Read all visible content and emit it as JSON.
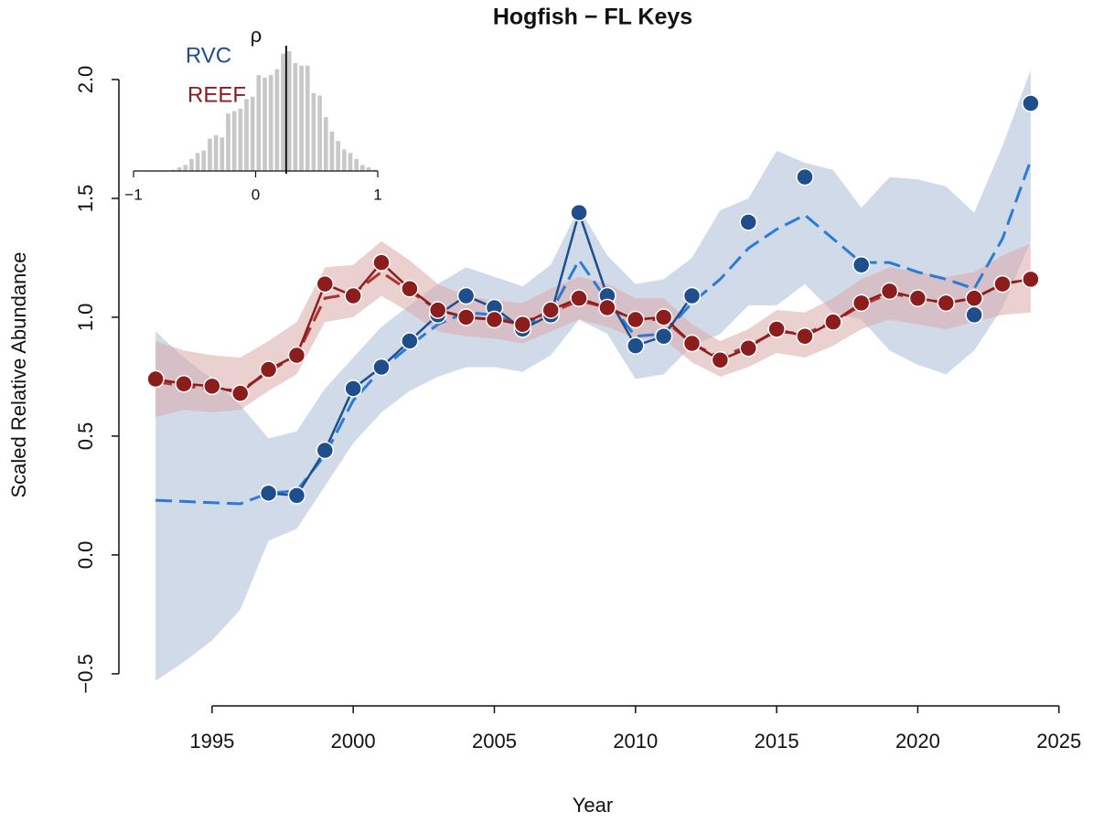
{
  "chart_data": [
    {
      "type": "line",
      "title": "Hogfish − FL Keys",
      "x_label": "Year",
      "y_label": "Scaled Relative Abundance",
      "x": [
        1993,
        1994,
        1995,
        1996,
        1997,
        1998,
        1999,
        2000,
        2001,
        2002,
        2003,
        2004,
        2005,
        2006,
        2007,
        2008,
        2009,
        2010,
        2011,
        2012,
        2013,
        2014,
        2015,
        2016,
        2017,
        2018,
        2019,
        2020,
        2021,
        2022,
        2023,
        2024
      ],
      "xlim": [
        1991.7,
        2025.3
      ],
      "xticks": [
        1995,
        2000,
        2005,
        2010,
        2015,
        2020,
        2025
      ],
      "ylim": [
        -0.635,
        2.2
      ],
      "yticks": [
        {
          "value": -0.5,
          "label": "−0.5"
        },
        {
          "value": 0,
          "label": "0.0"
        },
        0.5,
        {
          "value": 1,
          "label": "1.0"
        },
        1.5,
        {
          "value": 2,
          "label": "2.0"
        }
      ],
      "series": [
        {
          "name": "RVC",
          "color": "#1f4e8c",
          "model_color": "#2b7bd6",
          "band_color": "#a9bcd6",
          "values": [
            null,
            null,
            null,
            null,
            0.26,
            0.25,
            0.44,
            0.7,
            0.79,
            0.9,
            1.01,
            1.09,
            1.04,
            0.95,
            1.01,
            1.44,
            1.09,
            0.88,
            0.92,
            1.09,
            null,
            1.4,
            null,
            1.59,
            null,
            1.22,
            null,
            null,
            null,
            1.01,
            null,
            1.9
          ],
          "model": [
            0.23,
            0.225,
            0.22,
            0.215,
            0.26,
            0.27,
            0.42,
            0.65,
            0.78,
            0.88,
            0.97,
            1.02,
            1.01,
            0.96,
            1.02,
            1.24,
            1.07,
            0.92,
            0.93,
            1.06,
            1.16,
            1.29,
            1.37,
            1.43,
            1.33,
            1.23,
            1.23,
            1.19,
            1.16,
            1.12,
            1.33,
            1.66
          ],
          "lower": [
            -0.53,
            -0.45,
            -0.36,
            -0.23,
            0.06,
            0.11,
            0.29,
            0.47,
            0.6,
            0.69,
            0.75,
            0.79,
            0.79,
            0.77,
            0.84,
            0.99,
            0.93,
            0.74,
            0.76,
            0.88,
            0.93,
            1.05,
            1.05,
            1.14,
            1.02,
            0.99,
            0.86,
            0.8,
            0.76,
            0.86,
            1.04,
            1.32
          ],
          "upper": [
            0.94,
            0.83,
            0.74,
            0.63,
            0.49,
            0.52,
            0.7,
            0.83,
            0.96,
            1.05,
            1.14,
            1.21,
            1.17,
            1.13,
            1.22,
            1.46,
            1.26,
            1.14,
            1.16,
            1.25,
            1.45,
            1.5,
            1.7,
            1.65,
            1.62,
            1.46,
            1.59,
            1.58,
            1.55,
            1.44,
            1.72,
            2.04
          ]
        },
        {
          "name": "REEF",
          "color": "#8b1d1d",
          "model_color": "#b0302f",
          "band_color": "#dba9a9",
          "values": [
            0.74,
            0.72,
            0.71,
            0.68,
            0.78,
            0.84,
            1.14,
            1.09,
            1.23,
            1.12,
            1.03,
            1.0,
            0.99,
            0.97,
            1.03,
            1.08,
            1.04,
            0.99,
            1.0,
            0.89,
            0.82,
            0.87,
            0.95,
            0.92,
            0.98,
            1.06,
            1.11,
            1.08,
            1.06,
            1.08,
            1.14,
            1.16
          ],
          "model": [
            0.73,
            0.71,
            0.7,
            0.69,
            0.77,
            0.84,
            1.08,
            1.1,
            1.19,
            1.11,
            1.03,
            1.0,
            0.99,
            0.98,
            1.02,
            1.07,
            1.04,
            0.99,
            0.99,
            0.89,
            0.83,
            0.88,
            0.94,
            0.93,
            0.98,
            1.05,
            1.1,
            1.08,
            1.06,
            1.08,
            1.14,
            1.16
          ],
          "lower": [
            0.58,
            0.61,
            0.6,
            0.61,
            0.69,
            0.76,
            0.98,
            1.0,
            1.09,
            1.02,
            0.94,
            0.92,
            0.91,
            0.89,
            0.94,
            0.99,
            0.96,
            0.91,
            0.91,
            0.81,
            0.75,
            0.79,
            0.85,
            0.83,
            0.88,
            0.95,
            0.99,
            0.97,
            0.95,
            0.98,
            1.01,
            1.02
          ],
          "upper": [
            0.9,
            0.86,
            0.84,
            0.83,
            0.9,
            0.98,
            1.21,
            1.22,
            1.32,
            1.24,
            1.14,
            1.09,
            1.07,
            1.06,
            1.12,
            1.17,
            1.14,
            1.08,
            1.08,
            0.97,
            0.9,
            0.95,
            1.03,
            1.02,
            1.08,
            1.16,
            1.21,
            1.19,
            1.17,
            1.19,
            1.26,
            1.31
          ]
        }
      ]
    },
    {
      "type": "histogram",
      "title": "ρ",
      "color": "#c8c8c8",
      "marker": 0.25,
      "bins": [
        -0.75,
        -0.7,
        -0.65,
        -0.6,
        -0.55,
        -0.5,
        -0.45,
        -0.4,
        -0.35,
        -0.3,
        -0.25,
        -0.2,
        -0.15,
        -0.1,
        -0.05,
        0,
        0.05,
        0.1,
        0.15,
        0.2,
        0.25,
        0.3,
        0.35,
        0.4,
        0.45,
        0.5,
        0.55,
        0.6,
        0.65,
        0.7,
        0.75,
        0.8,
        0.85,
        0.9,
        0.95,
        1.0
      ],
      "counts": [
        0.5,
        1,
        3,
        5,
        10,
        15,
        17,
        27,
        30,
        28,
        48,
        50,
        52,
        60,
        62,
        80,
        78,
        80,
        85,
        98,
        100,
        90,
        88,
        88,
        65,
        63,
        45,
        33,
        25,
        18,
        15,
        10,
        5,
        3,
        1
      ],
      "xlim": [
        -1,
        1
      ],
      "xticks": [
        {
          "value": -1,
          "label": "−1"
        },
        0,
        1
      ]
    }
  ]
}
